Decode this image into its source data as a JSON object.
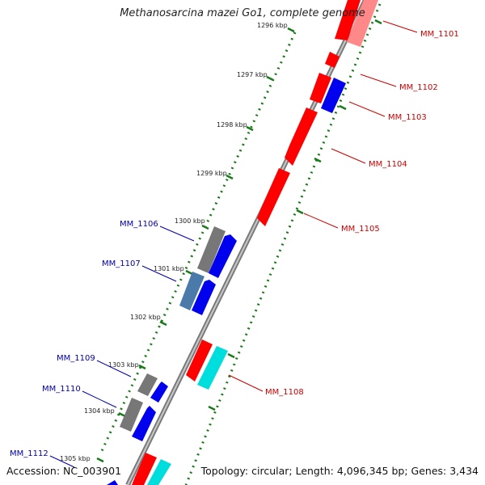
{
  "title": "Methanosarcina mazei Go1, complete genome",
  "accession": "Accession: NC_003901",
  "summary": "Topology: circular; Length: 4,096,345 bp; Genes: 3,434",
  "ticks": [
    "1296 kbp",
    "1297 kbp",
    "1298 kbp",
    "1299 kbp",
    "1300 kbp",
    "1301 kbp",
    "1302 kbp",
    "1303 kbp",
    "1304 kbp",
    "1305 kbp"
  ],
  "gene_labels": [
    {
      "id": "MM_1101",
      "color": "#cc0000"
    },
    {
      "id": "MM_1102",
      "color": "#cc0000"
    },
    {
      "id": "MM_1103",
      "color": "#cc0000"
    },
    {
      "id": "MM_1104",
      "color": "#cc0000"
    },
    {
      "id": "MM_1105",
      "color": "#cc0000"
    },
    {
      "id": "MM_1106",
      "color": "#0000aa"
    },
    {
      "id": "MM_1107",
      "color": "#0000aa"
    },
    {
      "id": "MM_1108",
      "color": "#cc0000"
    },
    {
      "id": "MM_1109",
      "color": "#0000aa"
    },
    {
      "id": "MM_1110",
      "color": "#0000aa"
    },
    {
      "id": "MM_1112",
      "color": "#0000aa"
    }
  ],
  "colors": {
    "backbone": "#7a7a7a",
    "ticks": "#1a7a1a",
    "red": "#ff0000",
    "blue": "#0000ee",
    "gray": "#777777",
    "steel": "#4a7aaa",
    "cyan": "#00dddd",
    "pink": "#ff8888"
  }
}
